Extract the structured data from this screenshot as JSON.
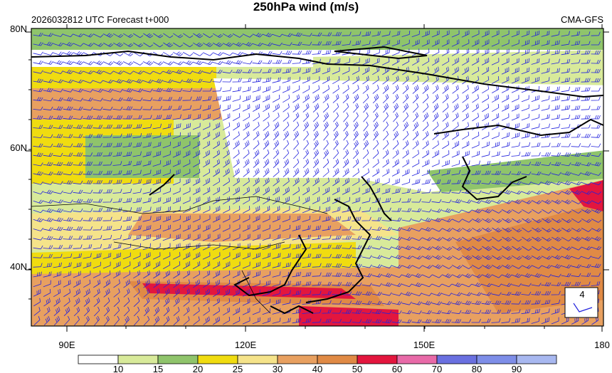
{
  "title": "250hPa wind (m/s)",
  "subtitle_left": "2026032812 UTC Forecast t+000",
  "subtitle_right": "CMA-GFS",
  "axes": {
    "lat_labels": [
      "80N",
      "60N",
      "40N"
    ],
    "lon_labels": [
      "90E",
      "120E",
      "150E",
      "180"
    ],
    "lon_range": [
      85,
      180
    ],
    "lat_range": [
      30,
      80
    ]
  },
  "legend": {
    "levels": [
      "10",
      "15",
      "20",
      "25",
      "30",
      "40",
      "50",
      "60",
      "70",
      "80",
      "90"
    ],
    "colors": [
      "#ffffff",
      "#d8ea9a",
      "#8fc46b",
      "#f0dc10",
      "#f5e38a",
      "#e8a060",
      "#e08a45",
      "#e3163e",
      "#e86aa8",
      "#6a70e0",
      "#7e8ee8",
      "#a8b8f0"
    ]
  },
  "reference_vector": {
    "label": "4"
  },
  "colors": {
    "barb": "#2222dd",
    "coast": "#000000"
  }
}
